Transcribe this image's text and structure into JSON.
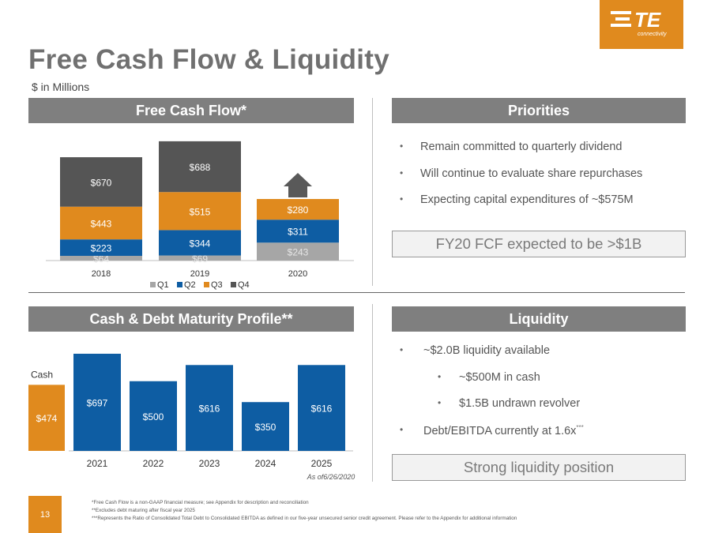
{
  "logo": {
    "brand": "TE",
    "subtitle": "connectivity",
    "color": "#e08a1e"
  },
  "header": {
    "title": "Free Cash Flow & Liquidity",
    "units": "$ in Millions"
  },
  "sections": {
    "fcf": "Free Cash Flow*",
    "priorities": "Priorities",
    "debt": "Cash & Debt Maturity Profile**",
    "liquidity": "Liquidity"
  },
  "priorities": {
    "items": [
      "Remain committed to quarterly dividend",
      "Will continue to evaluate share repurchases",
      "Expecting capital expenditures of ~$575M"
    ],
    "callout": "FY20 FCF expected to be >$1B"
  },
  "liquidity": {
    "items": [
      {
        "text": "~$2.0B liquidity available",
        "level": 0,
        "sup": ""
      },
      {
        "text": "~$500M in cash",
        "level": 1,
        "sup": ""
      },
      {
        "text": "$1.5B undrawn revolver",
        "level": 1,
        "sup": ""
      },
      {
        "text": "Debt/EBITDA currently at 1.6x",
        "level": 0,
        "sup": "***"
      }
    ],
    "callout": "Strong liquidity position"
  },
  "colors": {
    "q1": "#a6a6a6",
    "q2": "#0e5da3",
    "q3": "#e08a1e",
    "q4": "#555555",
    "cash": "#e08a1e",
    "debt": "#0e5da3",
    "header": "#7f7f7f"
  },
  "chart_data": [
    {
      "type": "bar",
      "stacked": true,
      "categories": [
        "2018",
        "2019",
        "2020"
      ],
      "series": [
        {
          "name": "Q1",
          "values": [
            64,
            69,
            243
          ],
          "labels": [
            "$64",
            "$69",
            "$243"
          ]
        },
        {
          "name": "Q2",
          "values": [
            223,
            344,
            311
          ],
          "labels": [
            "$223",
            "$344",
            "$311"
          ]
        },
        {
          "name": "Q3",
          "values": [
            443,
            515,
            280
          ],
          "labels": [
            "$443",
            "$515",
            "$280"
          ]
        },
        {
          "name": "Q4",
          "values": [
            670,
            688,
            null
          ],
          "labels": [
            "$670",
            "$688",
            ""
          ]
        }
      ],
      "legend": "bottom",
      "annotation": "up-arrow above 2020"
    },
    {
      "type": "bar",
      "cash": {
        "label": "Cash",
        "value": 474,
        "value_label": "$474"
      },
      "categories": [
        "2021",
        "2022",
        "2023",
        "2024",
        "2025"
      ],
      "values": [
        697,
        500,
        616,
        350,
        616
      ],
      "value_labels": [
        "$697",
        "$500",
        "$616",
        "$350",
        "$616"
      ],
      "note": "As of6/26/2020"
    }
  ],
  "footer": {
    "page_number": "13",
    "notes": [
      "*Free Cash Flow is a non-GAAP financial measure; see Appendix for description and reconciliation",
      "**Excludes debt maturing after fiscal year 2025",
      "***Represents the Ratio of Consolidated Total Debt to Consolidated EBITDA as defined in our five-year unsecured senior credit agreement. Please refer to the Appendix for additional information"
    ]
  }
}
